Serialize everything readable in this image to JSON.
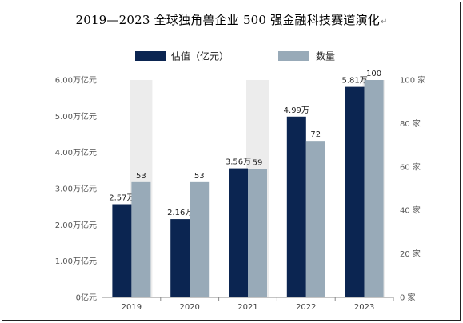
{
  "title": "2019—2023 全球独角兽企业 500 强金融科技赛道演化",
  "title_mark": "↵",
  "chart_data": {
    "type": "bar",
    "title": "2019—2023 全球独角兽企业 500 强金融科技赛道演化",
    "categories": [
      "2019",
      "2020",
      "2021",
      "2022",
      "2023"
    ],
    "series": [
      {
        "name": "估值（亿元）",
        "axis": "left",
        "color": "#0b2551",
        "values": [
          2.57,
          2.16,
          3.56,
          4.99,
          5.81
        ],
        "labels": [
          "2.57万",
          "2.16万",
          "3.56万",
          "4.99万",
          "5.81万"
        ]
      },
      {
        "name": "数量",
        "axis": "right",
        "color": "#98aab8",
        "values": [
          53,
          53,
          59,
          72,
          100
        ],
        "labels": [
          "53",
          "53",
          "59",
          "72",
          "100"
        ]
      }
    ],
    "y_left": {
      "range": [
        0,
        6
      ],
      "ticks": [
        0,
        1,
        2,
        3,
        4,
        5,
        6
      ],
      "tick_labels": [
        "0亿元",
        "1.00万亿元",
        "2.00万亿元",
        "3.00万亿元",
        "4.00万亿元",
        "5.00万亿元",
        "6.00万亿元"
      ]
    },
    "y_right": {
      "range": [
        0,
        100
      ],
      "ticks": [
        0,
        20,
        40,
        60,
        80,
        100
      ],
      "tick_labels": [
        "0 家",
        "20 家",
        "40 家",
        "60 家",
        "80 家",
        "100 家"
      ]
    },
    "legend_position": "top-center",
    "column_shading": "alternating light-gray bands behind the 2019, 2021 and 2023 groups",
    "grid": false
  }
}
